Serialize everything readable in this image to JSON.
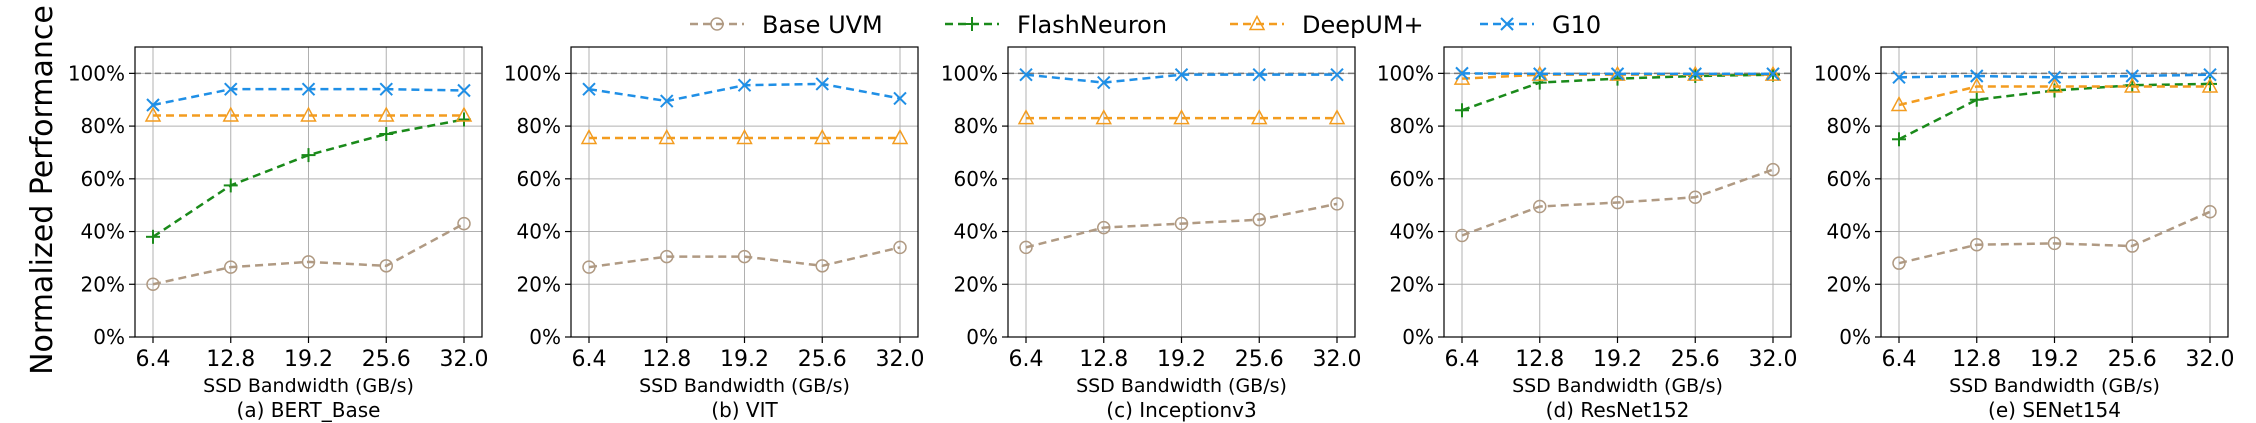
{
  "figure": {
    "ylabel": "Normalized Performance",
    "legend": [
      {
        "name": "Base UVM",
        "color": "#b09a83",
        "marker": "circle"
      },
      {
        "name": "FlashNeuron",
        "color": "#1a8a1a",
        "marker": "plus"
      },
      {
        "name": "DeepUM+",
        "color": "#f39c1f",
        "marker": "triangle"
      },
      {
        "name": "G10",
        "color": "#1f8fe6",
        "marker": "x"
      }
    ]
  },
  "chart_data": [
    {
      "type": "line",
      "caption": "(a) BERT_Base",
      "xlabel": "SSD Bandwidth (GB/s)",
      "categories": [
        "6.4",
        "12.8",
        "19.2",
        "25.6",
        "32.0"
      ],
      "ylim": [
        0,
        110
      ],
      "yticks": [
        "0%",
        "20%",
        "40%",
        "60%",
        "80%",
        "100%"
      ],
      "grid": true,
      "reference_line": 100,
      "series": [
        {
          "name": "Base UVM",
          "values": [
            20,
            26.5,
            28.5,
            27,
            43
          ]
        },
        {
          "name": "FlashNeuron",
          "values": [
            38,
            57.5,
            69,
            77,
            82.5
          ]
        },
        {
          "name": "DeepUM+",
          "values": [
            84,
            84,
            84,
            84,
            84
          ]
        },
        {
          "name": "G10",
          "values": [
            88,
            94,
            94,
            94,
            93.5
          ]
        }
      ]
    },
    {
      "type": "line",
      "caption": "(b) VIT",
      "xlabel": "SSD Bandwidth (GB/s)",
      "categories": [
        "6.4",
        "12.8",
        "19.2",
        "25.6",
        "32.0"
      ],
      "ylim": [
        0,
        110
      ],
      "yticks": [
        "0%",
        "20%",
        "40%",
        "60%",
        "80%",
        "100%"
      ],
      "grid": true,
      "reference_line": 100,
      "series": [
        {
          "name": "Base UVM",
          "values": [
            26.5,
            30.5,
            30.5,
            27,
            34
          ]
        },
        {
          "name": "DeepUM+",
          "values": [
            75.5,
            75.5,
            75.5,
            75.5,
            75.5
          ]
        },
        {
          "name": "G10",
          "values": [
            94,
            89.5,
            95.5,
            96,
            90.5
          ]
        }
      ]
    },
    {
      "type": "line",
      "caption": "(c) Inceptionv3",
      "xlabel": "SSD Bandwidth (GB/s)",
      "categories": [
        "6.4",
        "12.8",
        "19.2",
        "25.6",
        "32.0"
      ],
      "ylim": [
        0,
        110
      ],
      "yticks": [
        "0%",
        "20%",
        "40%",
        "60%",
        "80%",
        "100%"
      ],
      "grid": true,
      "reference_line": 100,
      "series": [
        {
          "name": "Base UVM",
          "values": [
            34,
            41.5,
            43,
            44.5,
            50.5
          ]
        },
        {
          "name": "DeepUM+",
          "values": [
            83,
            83,
            83,
            83,
            83
          ]
        },
        {
          "name": "G10",
          "values": [
            99.5,
            96.5,
            99.5,
            99.5,
            99.5
          ]
        }
      ]
    },
    {
      "type": "line",
      "caption": "(d) ResNet152",
      "xlabel": "SSD Bandwidth (GB/s)",
      "categories": [
        "6.4",
        "12.8",
        "19.2",
        "25.6",
        "32.0"
      ],
      "ylim": [
        0,
        110
      ],
      "yticks": [
        "0%",
        "20%",
        "40%",
        "60%",
        "80%",
        "100%"
      ],
      "grid": true,
      "reference_line": 100,
      "series": [
        {
          "name": "Base UVM",
          "values": [
            38.5,
            49.5,
            51,
            53,
            63.5
          ]
        },
        {
          "name": "FlashNeuron",
          "values": [
            86,
            96.5,
            98,
            99,
            99.5
          ]
        },
        {
          "name": "DeepUM+",
          "values": [
            98,
            99.5,
            99.5,
            99.5,
            99.5
          ]
        },
        {
          "name": "G10",
          "values": [
            100,
            99.8,
            99.8,
            99.8,
            99.8
          ]
        }
      ]
    },
    {
      "type": "line",
      "caption": "(e) SENet154",
      "xlabel": "SSD Bandwidth (GB/s)",
      "categories": [
        "6.4",
        "12.8",
        "19.2",
        "25.6",
        "32.0"
      ],
      "ylim": [
        0,
        110
      ],
      "yticks": [
        "0%",
        "20%",
        "40%",
        "60%",
        "80%",
        "100%"
      ],
      "grid": true,
      "reference_line": 100,
      "series": [
        {
          "name": "Base UVM",
          "values": [
            28,
            35,
            35.5,
            34.5,
            47.5
          ]
        },
        {
          "name": "FlashNeuron",
          "values": [
            75,
            90,
            93.5,
            95.5,
            96
          ]
        },
        {
          "name": "DeepUM+",
          "values": [
            88,
            95,
            95,
            95,
            95
          ]
        },
        {
          "name": "G10",
          "values": [
            98.5,
            99,
            98.5,
            99,
            99.5
          ]
        }
      ]
    }
  ]
}
